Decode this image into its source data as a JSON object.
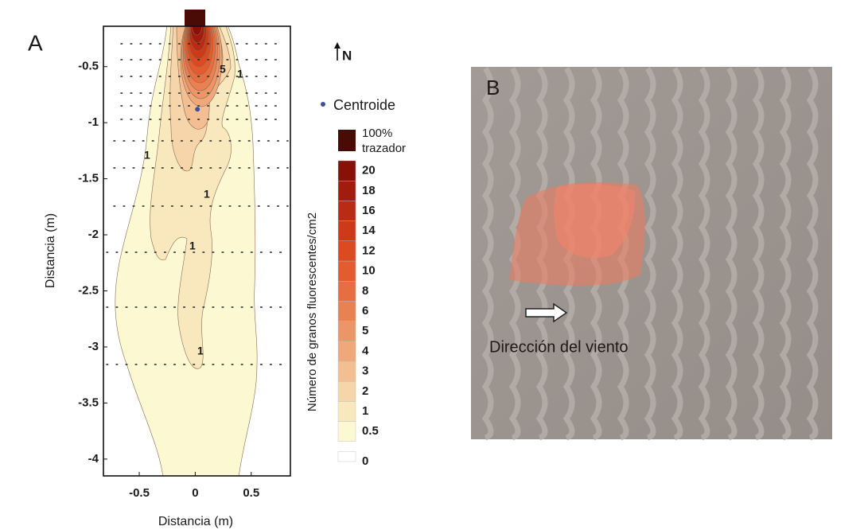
{
  "chart_data": {
    "type": "contour",
    "panel_label": "A",
    "xlabel": "Distancia (m)",
    "ylabel": "Distancia (m)",
    "xlim": [
      -0.82,
      0.85
    ],
    "ylim": [
      -4.15,
      -0.14
    ],
    "xticks": [
      -0.5,
      0,
      0.5
    ],
    "yticks": [
      -0.5,
      -1,
      -1.5,
      -2,
      -2.5,
      -3,
      -3.5,
      -4
    ],
    "centroid": {
      "name": "Centroide",
      "x": 0.02,
      "y": -0.88,
      "color": "#3a4fa0"
    },
    "contour_labels": [
      5,
      1,
      1,
      1,
      1,
      1
    ],
    "north_label": "N",
    "colorbar": {
      "label": "Número de granos fluorescentes/cm2",
      "levels": [
        0,
        0.5,
        1,
        2,
        3,
        4,
        5,
        6,
        8,
        10,
        12,
        14,
        16,
        18,
        20
      ],
      "colors": [
        "#ffffff",
        "#fbf8d2",
        "#f9e7bd",
        "#f6d5aa",
        "#f3bf92",
        "#f0a87a",
        "#ec9566",
        "#e98153",
        "#e66e40",
        "#e35c2f",
        "#dc4a22",
        "#cd3a19",
        "#b92b12",
        "#a11c0c",
        "#871008"
      ],
      "source_label": [
        "100%",
        "trazador"
      ],
      "source_color": "#4a0a06"
    }
  },
  "photo": {
    "panel_label": "B",
    "annotation": "Dirección del viento"
  }
}
